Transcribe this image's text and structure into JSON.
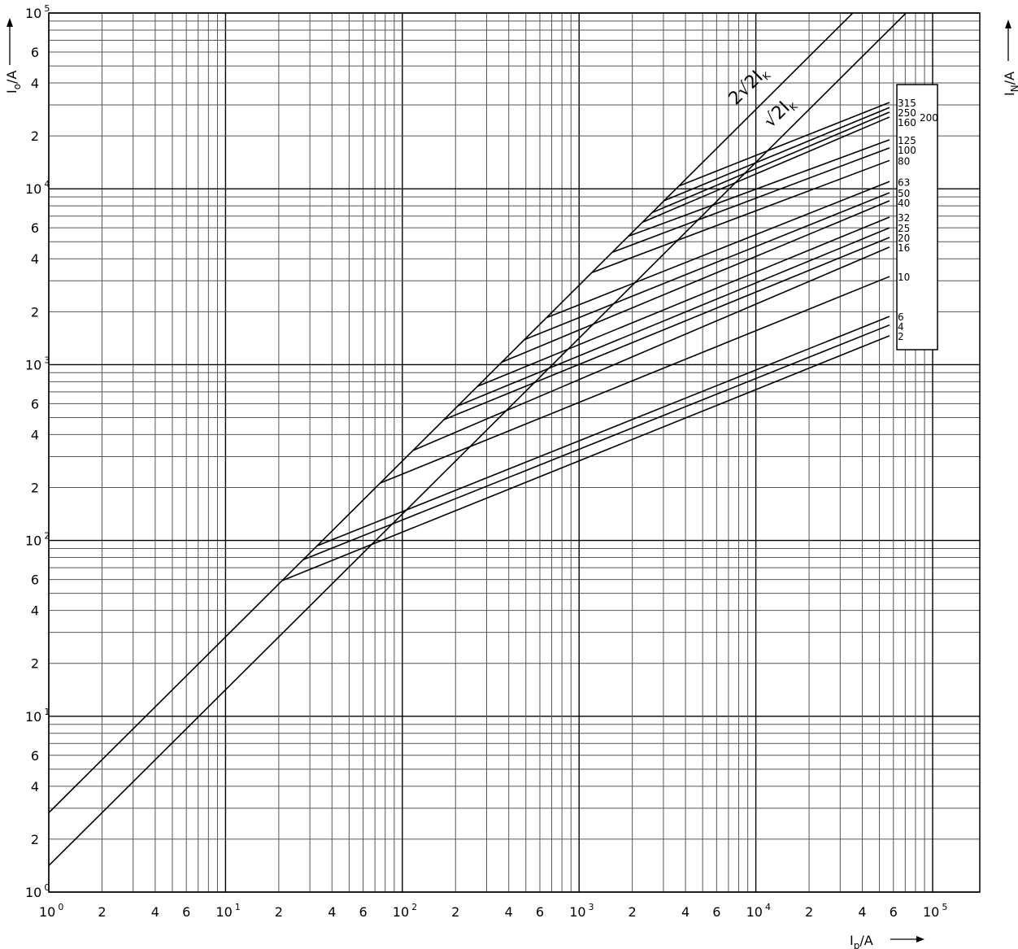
{
  "chart_data": {
    "type": "line",
    "xscale": "log",
    "yscale": "log",
    "xlim": [
      1,
      185000
    ],
    "ylim": [
      1,
      100000
    ],
    "grid": true,
    "xlabel": {
      "main": "I",
      "sub": "p",
      "unit": "/A"
    },
    "ylabel": {
      "main": "I",
      "sub": "o",
      "unit": "/A"
    },
    "right_label": {
      "main": "I",
      "sub": "N",
      "unit": "/A"
    },
    "x_decade_ticks": [
      {
        "base": "10",
        "exp": "0",
        "value": 1
      },
      {
        "base": "10",
        "exp": "1",
        "value": 10
      },
      {
        "base": "10",
        "exp": "2",
        "value": 100
      },
      {
        "base": "10",
        "exp": "3",
        "value": 1000
      },
      {
        "base": "10",
        "exp": "4",
        "value": 10000
      },
      {
        "base": "10",
        "exp": "5",
        "value": 100000
      }
    ],
    "y_decade_ticks": [
      {
        "base": "10",
        "exp": "0",
        "value": 1
      },
      {
        "base": "10",
        "exp": "1",
        "value": 10
      },
      {
        "base": "10",
        "exp": "2",
        "value": 100
      },
      {
        "base": "10",
        "exp": "3",
        "value": 1000
      },
      {
        "base": "10",
        "exp": "4",
        "value": 10000
      },
      {
        "base": "10",
        "exp": "5",
        "value": 100000
      }
    ],
    "minor_tick_labels": [
      "2",
      "4",
      "6"
    ],
    "reference_lines": [
      {
        "label": "2√2I",
        "sub": "K",
        "factor": 2.828
      },
      {
        "label": "√2I",
        "sub": "K",
        "factor": 1.414
      }
    ],
    "series_end_x": 57000,
    "series": [
      {
        "name": "315",
        "x0": 3670,
        "y1": 31000
      },
      {
        "name": "250",
        "x0": 3030,
        "y1": 29000
      },
      {
        "name": "200",
        "x0": 2590,
        "y1": 27300
      },
      {
        "name": "160",
        "x0": 2280,
        "y1": 25600
      },
      {
        "name": "125",
        "x0": 1900,
        "y1": 19000
      },
      {
        "name": "100",
        "x0": 1540,
        "y1": 17100
      },
      {
        "name": "80",
        "x0": 1180,
        "y1": 14500
      },
      {
        "name": "63",
        "x0": 653,
        "y1": 11000
      },
      {
        "name": "50",
        "x0": 491,
        "y1": 9500
      },
      {
        "name": "40",
        "x0": 365,
        "y1": 8550
      },
      {
        "name": "32",
        "x0": 266,
        "y1": 6900
      },
      {
        "name": "25",
        "x0": 206,
        "y1": 6000
      },
      {
        "name": "20",
        "x0": 172,
        "y1": 5290
      },
      {
        "name": "16",
        "x0": 115,
        "y1": 4660
      },
      {
        "name": "10",
        "x0": 75,
        "y1": 3170
      },
      {
        "name": "6",
        "x0": 33,
        "y1": 1880
      },
      {
        "name": "4",
        "x0": 27.5,
        "y1": 1680
      },
      {
        "name": "2",
        "x0": 20.9,
        "y1": 1460
      }
    ]
  }
}
